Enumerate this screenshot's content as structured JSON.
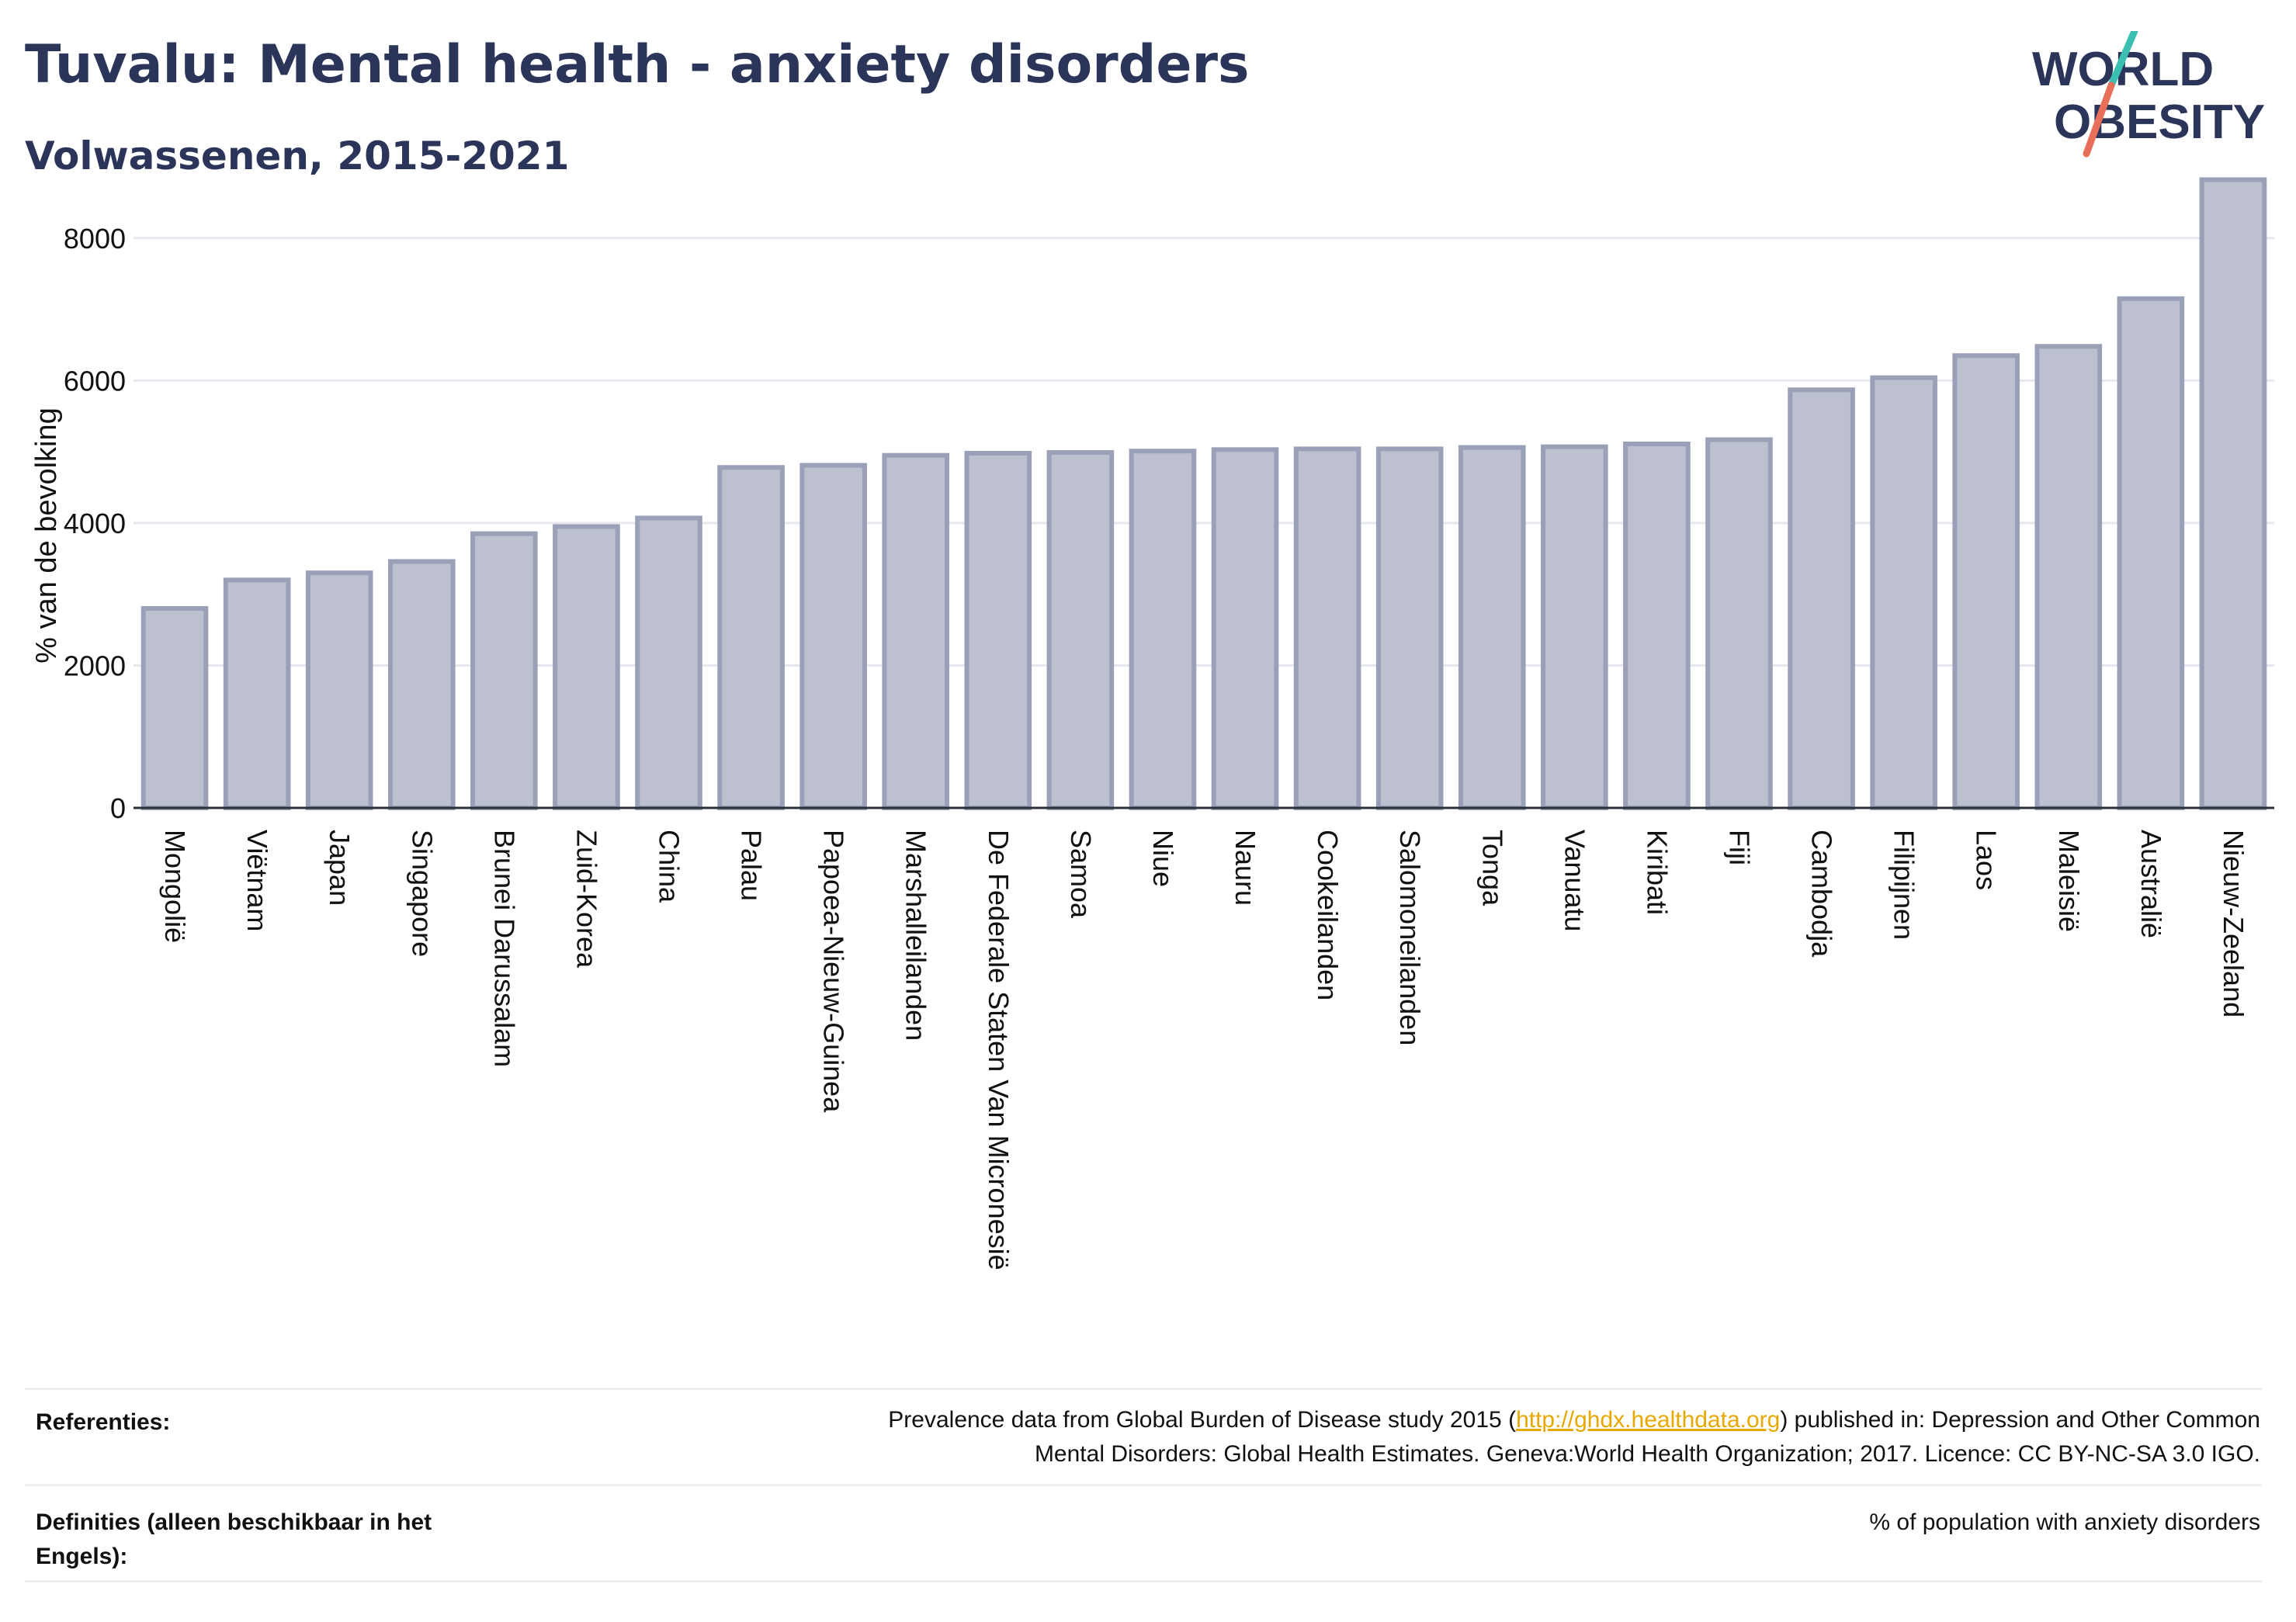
{
  "header": {
    "title": "Tuvalu: Mental health - anxiety disorders",
    "subtitle": "Volwassenen, 2015-2021",
    "logo_line1": "WORLD",
    "logo_line2": "OBESITY"
  },
  "chart_data": {
    "type": "bar",
    "title": "Tuvalu: Mental health - anxiety disorders",
    "subtitle": "Volwassenen, 2015-2021",
    "xlabel": "",
    "ylabel": "% van de bevolking",
    "ylim": [
      0,
      9000
    ],
    "yticks": [
      0,
      2000,
      4000,
      6000,
      8000
    ],
    "grid": true,
    "categories": [
      "Mongolië",
      "Viëtnam",
      "Japan",
      "Singapore",
      "Brunei Darussalam",
      "Zuid-Korea",
      "China",
      "Palau",
      "Papoea-Nieuw-Guinea",
      "Marshalleilanden",
      "De Federale Staten Van Micronesië",
      "Samoa",
      "Niue",
      "Nauru",
      "Cookeilanden",
      "Salomoneilanden",
      "Tonga",
      "Vanuatu",
      "Kiribati",
      "Fiji",
      "Cambodja",
      "Filipijnen",
      "Laos",
      "Maleisië",
      "Australië",
      "Nieuw-Zeeland"
    ],
    "values": [
      2800,
      3200,
      3300,
      3460,
      3850,
      3950,
      4070,
      4780,
      4810,
      4950,
      4980,
      4990,
      5010,
      5030,
      5040,
      5040,
      5060,
      5070,
      5110,
      5170,
      5870,
      6040,
      6350,
      6480,
      7150,
      8820
    ]
  },
  "colors": {
    "bar_fill": "#bcc0cf",
    "bar_stroke": "#9aa0b8",
    "title": "#2a3559",
    "logo_teal": "#3bbfb0",
    "logo_coral": "#e8705a",
    "link": "#e8a800"
  },
  "references": {
    "label": "Referenties:",
    "text_before": "Prevalence data from Global Burden of Disease study 2015 (",
    "link": "http://ghdx.healthdata.org",
    "text_after": ") published in: Depression and Other Common",
    "text_line2": "Mental Disorders: Global Health Estimates. Geneva:World Health Organization; 2017. Licence: CC BY-NC-SA 3.0 IGO."
  },
  "definitions": {
    "label_line1": "Definities (alleen beschikbaar in het",
    "label_line2": "Engels):",
    "text": "% of population with anxiety disorders"
  }
}
